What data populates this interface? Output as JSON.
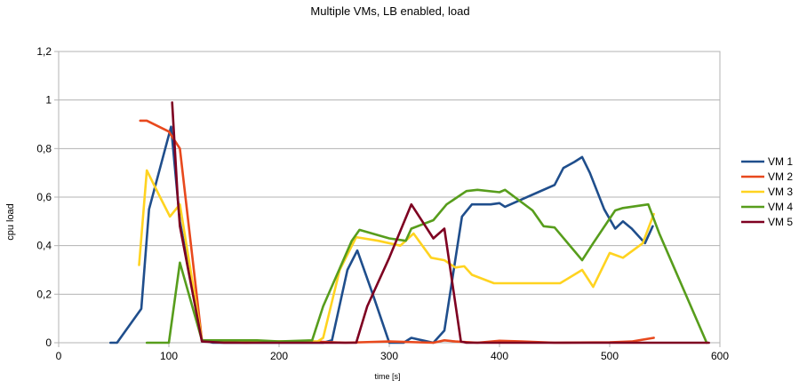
{
  "chart_data": {
    "type": "line",
    "title": "Multiple VMs, LB enabled, load",
    "xlabel": "time [s]",
    "ylabel": "cpu load",
    "xlim": [
      0,
      600
    ],
    "ylim": [
      0,
      1.2
    ],
    "x_ticks": [
      "0",
      "100",
      "200",
      "300",
      "400",
      "500",
      "600"
    ],
    "y_ticks": [
      "0",
      "0,2",
      "0,4",
      "0,6",
      "0,8",
      "1",
      "1,2"
    ],
    "grid": "horizontal",
    "legend_position": "right",
    "series": [
      {
        "name": "VM 1",
        "color": "#1f4e8c",
        "points": [
          [
            47,
            0
          ],
          [
            53,
            0
          ],
          [
            75,
            0.14
          ],
          [
            82,
            0.55
          ],
          [
            102,
            0.89
          ],
          [
            110,
            0.5
          ],
          [
            130,
            0.01
          ],
          [
            140,
            0
          ],
          [
            240,
            0
          ],
          [
            248,
            0.01
          ],
          [
            262,
            0.3
          ],
          [
            271,
            0.38
          ],
          [
            285,
            0.2
          ],
          [
            300,
            0
          ],
          [
            313,
            0
          ],
          [
            320,
            0.02
          ],
          [
            330,
            0.01
          ],
          [
            340,
            0
          ],
          [
            350,
            0.05
          ],
          [
            366,
            0.52
          ],
          [
            375,
            0.57
          ],
          [
            392,
            0.57
          ],
          [
            400,
            0.575
          ],
          [
            405,
            0.56
          ],
          [
            420,
            0.59
          ],
          [
            435,
            0.62
          ],
          [
            450,
            0.65
          ],
          [
            458,
            0.72
          ],
          [
            468,
            0.745
          ],
          [
            475,
            0.765
          ],
          [
            482,
            0.7
          ],
          [
            495,
            0.55
          ],
          [
            505,
            0.47
          ],
          [
            512,
            0.5
          ],
          [
            520,
            0.47
          ],
          [
            532,
            0.41
          ],
          [
            539,
            0.48
          ]
        ]
      },
      {
        "name": "VM 2",
        "color": "#e8491d",
        "points": [
          [
            74,
            0.915
          ],
          [
            80,
            0.915
          ],
          [
            100,
            0.87
          ],
          [
            110,
            0.8
          ],
          [
            130,
            0.01
          ],
          [
            140,
            0.005
          ],
          [
            170,
            0
          ],
          [
            200,
            0.005
          ],
          [
            230,
            0.005
          ],
          [
            260,
            0
          ],
          [
            300,
            0.005
          ],
          [
            340,
            0
          ],
          [
            350,
            0.01
          ],
          [
            360,
            0.005
          ],
          [
            380,
            0
          ],
          [
            400,
            0.008
          ],
          [
            420,
            0.005
          ],
          [
            450,
            0
          ],
          [
            500,
            0.002
          ],
          [
            520,
            0.005
          ],
          [
            540,
            0.02
          ]
        ]
      },
      {
        "name": "VM 3",
        "color": "#ffd320",
        "points": [
          [
            73,
            0.32
          ],
          [
            80,
            0.71
          ],
          [
            92,
            0.6
          ],
          [
            101,
            0.52
          ],
          [
            110,
            0.57
          ],
          [
            130,
            0.01
          ],
          [
            160,
            0.01
          ],
          [
            180,
            0.005
          ],
          [
            200,
            0.005
          ],
          [
            220,
            0.005
          ],
          [
            235,
            0.005
          ],
          [
            240,
            0.02
          ],
          [
            255,
            0.3
          ],
          [
            270,
            0.435
          ],
          [
            290,
            0.42
          ],
          [
            310,
            0.4
          ],
          [
            322,
            0.45
          ],
          [
            338,
            0.35
          ],
          [
            350,
            0.34
          ],
          [
            360,
            0.31
          ],
          [
            368,
            0.315
          ],
          [
            375,
            0.28
          ],
          [
            395,
            0.245
          ],
          [
            410,
            0.245
          ],
          [
            430,
            0.245
          ],
          [
            455,
            0.245
          ],
          [
            475,
            0.3
          ],
          [
            485,
            0.23
          ],
          [
            500,
            0.37
          ],
          [
            512,
            0.35
          ],
          [
            530,
            0.41
          ],
          [
            540,
            0.53
          ]
        ]
      },
      {
        "name": "VM 4",
        "color": "#579d1c",
        "points": [
          [
            80,
            0
          ],
          [
            100,
            0
          ],
          [
            110,
            0.33
          ],
          [
            130,
            0.01
          ],
          [
            160,
            0.01
          ],
          [
            180,
            0.01
          ],
          [
            200,
            0.005
          ],
          [
            230,
            0.01
          ],
          [
            240,
            0.15
          ],
          [
            266,
            0.42
          ],
          [
            273,
            0.465
          ],
          [
            300,
            0.43
          ],
          [
            315,
            0.42
          ],
          [
            320,
            0.47
          ],
          [
            340,
            0.505
          ],
          [
            352,
            0.57
          ],
          [
            370,
            0.625
          ],
          [
            380,
            0.63
          ],
          [
            400,
            0.62
          ],
          [
            405,
            0.63
          ],
          [
            430,
            0.545
          ],
          [
            440,
            0.48
          ],
          [
            450,
            0.475
          ],
          [
            475,
            0.34
          ],
          [
            485,
            0.41
          ],
          [
            505,
            0.545
          ],
          [
            512,
            0.555
          ],
          [
            535,
            0.57
          ],
          [
            545,
            0.45
          ],
          [
            588,
            0
          ]
        ]
      },
      {
        "name": "VM 5",
        "color": "#7e0021",
        "points": [
          [
            103,
            0.99
          ],
          [
            108,
            0.6
          ],
          [
            110,
            0.48
          ],
          [
            130,
            0.005
          ],
          [
            150,
            0
          ],
          [
            250,
            0
          ],
          [
            270,
            0
          ],
          [
            280,
            0.15
          ],
          [
            300,
            0.35
          ],
          [
            320,
            0.57
          ],
          [
            340,
            0.43
          ],
          [
            350,
            0.47
          ],
          [
            365,
            0.005
          ],
          [
            370,
            0
          ],
          [
            400,
            0
          ],
          [
            500,
            0
          ],
          [
            540,
            0
          ],
          [
            590,
            0
          ]
        ]
      }
    ]
  }
}
